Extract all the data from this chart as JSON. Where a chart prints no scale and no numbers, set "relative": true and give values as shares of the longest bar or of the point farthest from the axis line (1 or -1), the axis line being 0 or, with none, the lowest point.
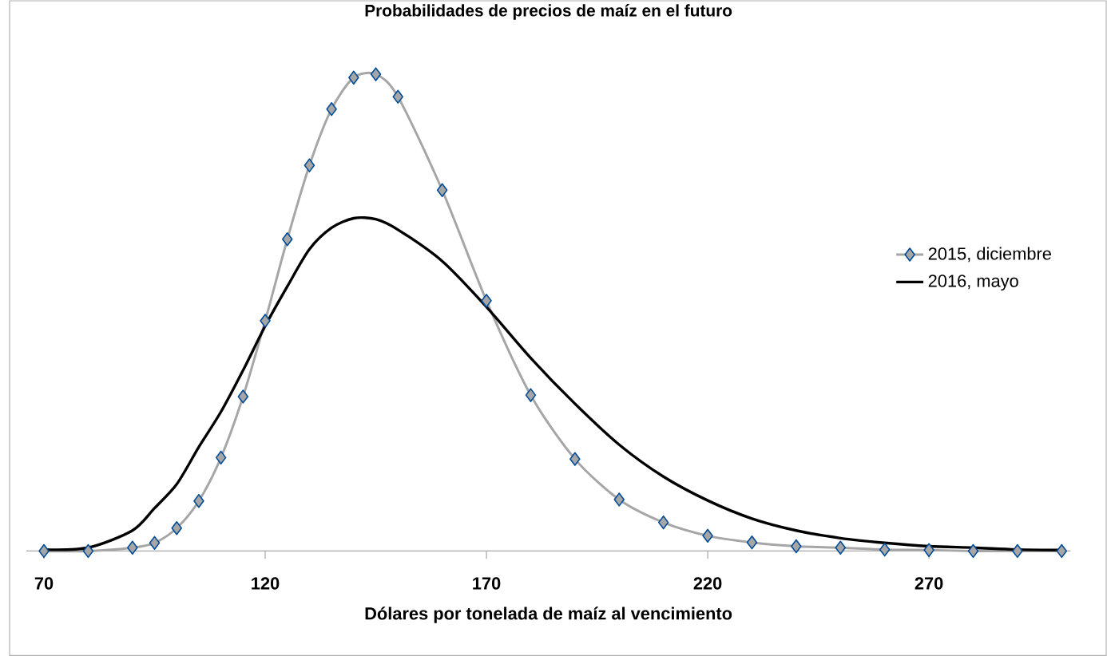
{
  "chart_data": {
    "type": "line",
    "title": "Probabilidades de precios de maíz en el futuro",
    "xlabel": "Dólares por tonelada de maíz al vencimiento",
    "relative": true,
    "x": [
      70,
      80,
      90,
      95,
      100,
      105,
      110,
      115,
      120,
      125,
      130,
      135,
      140,
      145,
      150,
      160,
      170,
      180,
      190,
      200,
      210,
      220,
      230,
      240,
      250,
      260,
      270,
      280,
      290,
      300
    ],
    "xlim": [
      66,
      302
    ],
    "xticks": [
      70,
      120,
      170,
      220,
      270
    ],
    "legend": "right",
    "grid": false,
    "line_style": "solid",
    "series": [
      {
        "name": "2015, diciembre",
        "color": "#a6a6a6",
        "marker": "diamond",
        "values": [
          0,
          0,
          0.007,
          0.017,
          0.048,
          0.105,
          0.196,
          0.324,
          0.483,
          0.654,
          0.809,
          0.927,
          0.993,
          1,
          0.953,
          0.757,
          0.525,
          0.327,
          0.193,
          0.108,
          0.06,
          0.032,
          0.018,
          0.01,
          0.007,
          0.003,
          0.002,
          0,
          0,
          0
        ]
      },
      {
        "name": "2016, mayo",
        "color": "#000000",
        "marker": "none",
        "values": [
          0.003,
          0.007,
          0.043,
          0.09,
          0.14,
          0.218,
          0.292,
          0.379,
          0.472,
          0.555,
          0.633,
          0.678,
          0.698,
          0.696,
          0.674,
          0.608,
          0.512,
          0.405,
          0.309,
          0.223,
          0.156,
          0.106,
          0.068,
          0.043,
          0.027,
          0.017,
          0.01,
          0.007,
          0.003,
          0.002
        ]
      }
    ]
  }
}
